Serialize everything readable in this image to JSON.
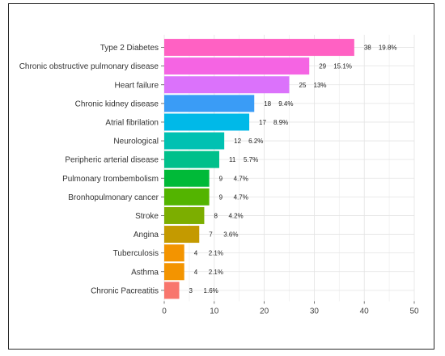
{
  "chart_data": {
    "type": "bar",
    "orientation": "horizontal",
    "categories": [
      "Type 2 Diabetes",
      "Chronic obstructive pulmonary disease",
      "Heart failure",
      "Chronic kidney disease",
      "Atrial fibrilation",
      "Neurological",
      "Peripheric arterial disease",
      "Pulmonary trombembolism",
      "Bronhopulmonary cancer",
      "Stroke",
      "Angina",
      "Tuberculosis",
      "Asthma",
      "Chronic Pacreatitis"
    ],
    "values": [
      38,
      29,
      25,
      18,
      17,
      12,
      11,
      9,
      9,
      8,
      7,
      4,
      4,
      3
    ],
    "value_labels": [
      "38",
      "29",
      "25",
      "18",
      "17",
      "12",
      "11",
      "9",
      "9",
      "8",
      "7",
      "4",
      "4",
      "3"
    ],
    "percent_labels": [
      "19.8%",
      "15.1%",
      "13%",
      "9.4%",
      "8.9%",
      "6.2%",
      "5.7%",
      "4.7%",
      "4.7%",
      "4.2%",
      "3.6%",
      "2.1%",
      "2.1%",
      "1.6%"
    ],
    "colors": [
      "#FF61C3",
      "#F564E3",
      "#DB72FB",
      "#3A9CF6",
      "#00B9E8",
      "#00C1B2",
      "#00C08B",
      "#00BA38",
      "#53B400",
      "#7CAE00",
      "#C49A00",
      "#F39400",
      "#F39400",
      "#F8766D"
    ],
    "xlim": [
      0,
      50
    ],
    "xticks": [
      "0",
      "10",
      "20",
      "30",
      "40",
      "50"
    ],
    "title": "",
    "xlabel": "",
    "ylabel": "",
    "grid": true,
    "gridline_color": "#e5e5e5",
    "legend": "none"
  }
}
